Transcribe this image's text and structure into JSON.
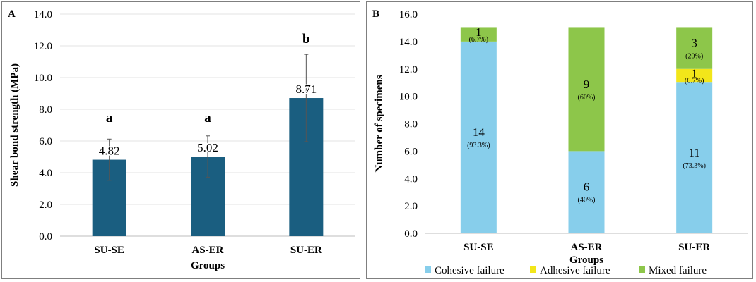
{
  "chart_data": [
    {
      "panel_label": "A",
      "type": "bar",
      "xlabel": "Groups",
      "ylabel": "Shear bond strength (MPa)",
      "ylim": [
        0,
        14
      ],
      "ytick_step": 2,
      "ytick_labels": [
        "0.0",
        "2.0",
        "4.0",
        "6.0",
        "8.0",
        "10.0",
        "12.0",
        "14.0"
      ],
      "categories": [
        "SU-SE",
        "AS-ER",
        "SU-ER"
      ],
      "values": [
        4.82,
        5.02,
        8.71
      ],
      "value_labels": [
        "4.82",
        "5.02",
        "8.71"
      ],
      "error_bars": [
        1.3,
        1.3,
        2.75
      ],
      "significance": [
        "a",
        "a",
        "b"
      ],
      "bar_color": "#1a5e80",
      "grid": true
    },
    {
      "panel_label": "B",
      "type": "stacked_bar",
      "xlabel": "Groups",
      "ylabel": "Number of specimens",
      "ylim": [
        0,
        16
      ],
      "ytick_step": 2,
      "ytick_labels": [
        "0.0",
        "2.0",
        "4.0",
        "6.0",
        "8.0",
        "10.0",
        "12.0",
        "14.0",
        "16.0"
      ],
      "categories": [
        "SU-SE",
        "AS-ER",
        "SU-ER"
      ],
      "series": [
        {
          "name": "Cohesive failure",
          "color": "#87ceeb",
          "values": [
            14,
            6,
            11
          ],
          "pct_labels": [
            "(93.3%)",
            "(40%)",
            "(73.3%)"
          ]
        },
        {
          "name": "Adhesive failure",
          "color": "#f2e61a",
          "values": [
            0,
            0,
            1
          ],
          "pct_labels": [
            "",
            "",
            "(6.7%)"
          ]
        },
        {
          "name": "Mixed failure",
          "color": "#8dc64a",
          "values": [
            1,
            9,
            3
          ],
          "pct_labels": [
            "(6.7%)",
            "(60%)",
            "(20%)"
          ]
        }
      ],
      "legend_position": "bottom",
      "grid": false
    }
  ]
}
